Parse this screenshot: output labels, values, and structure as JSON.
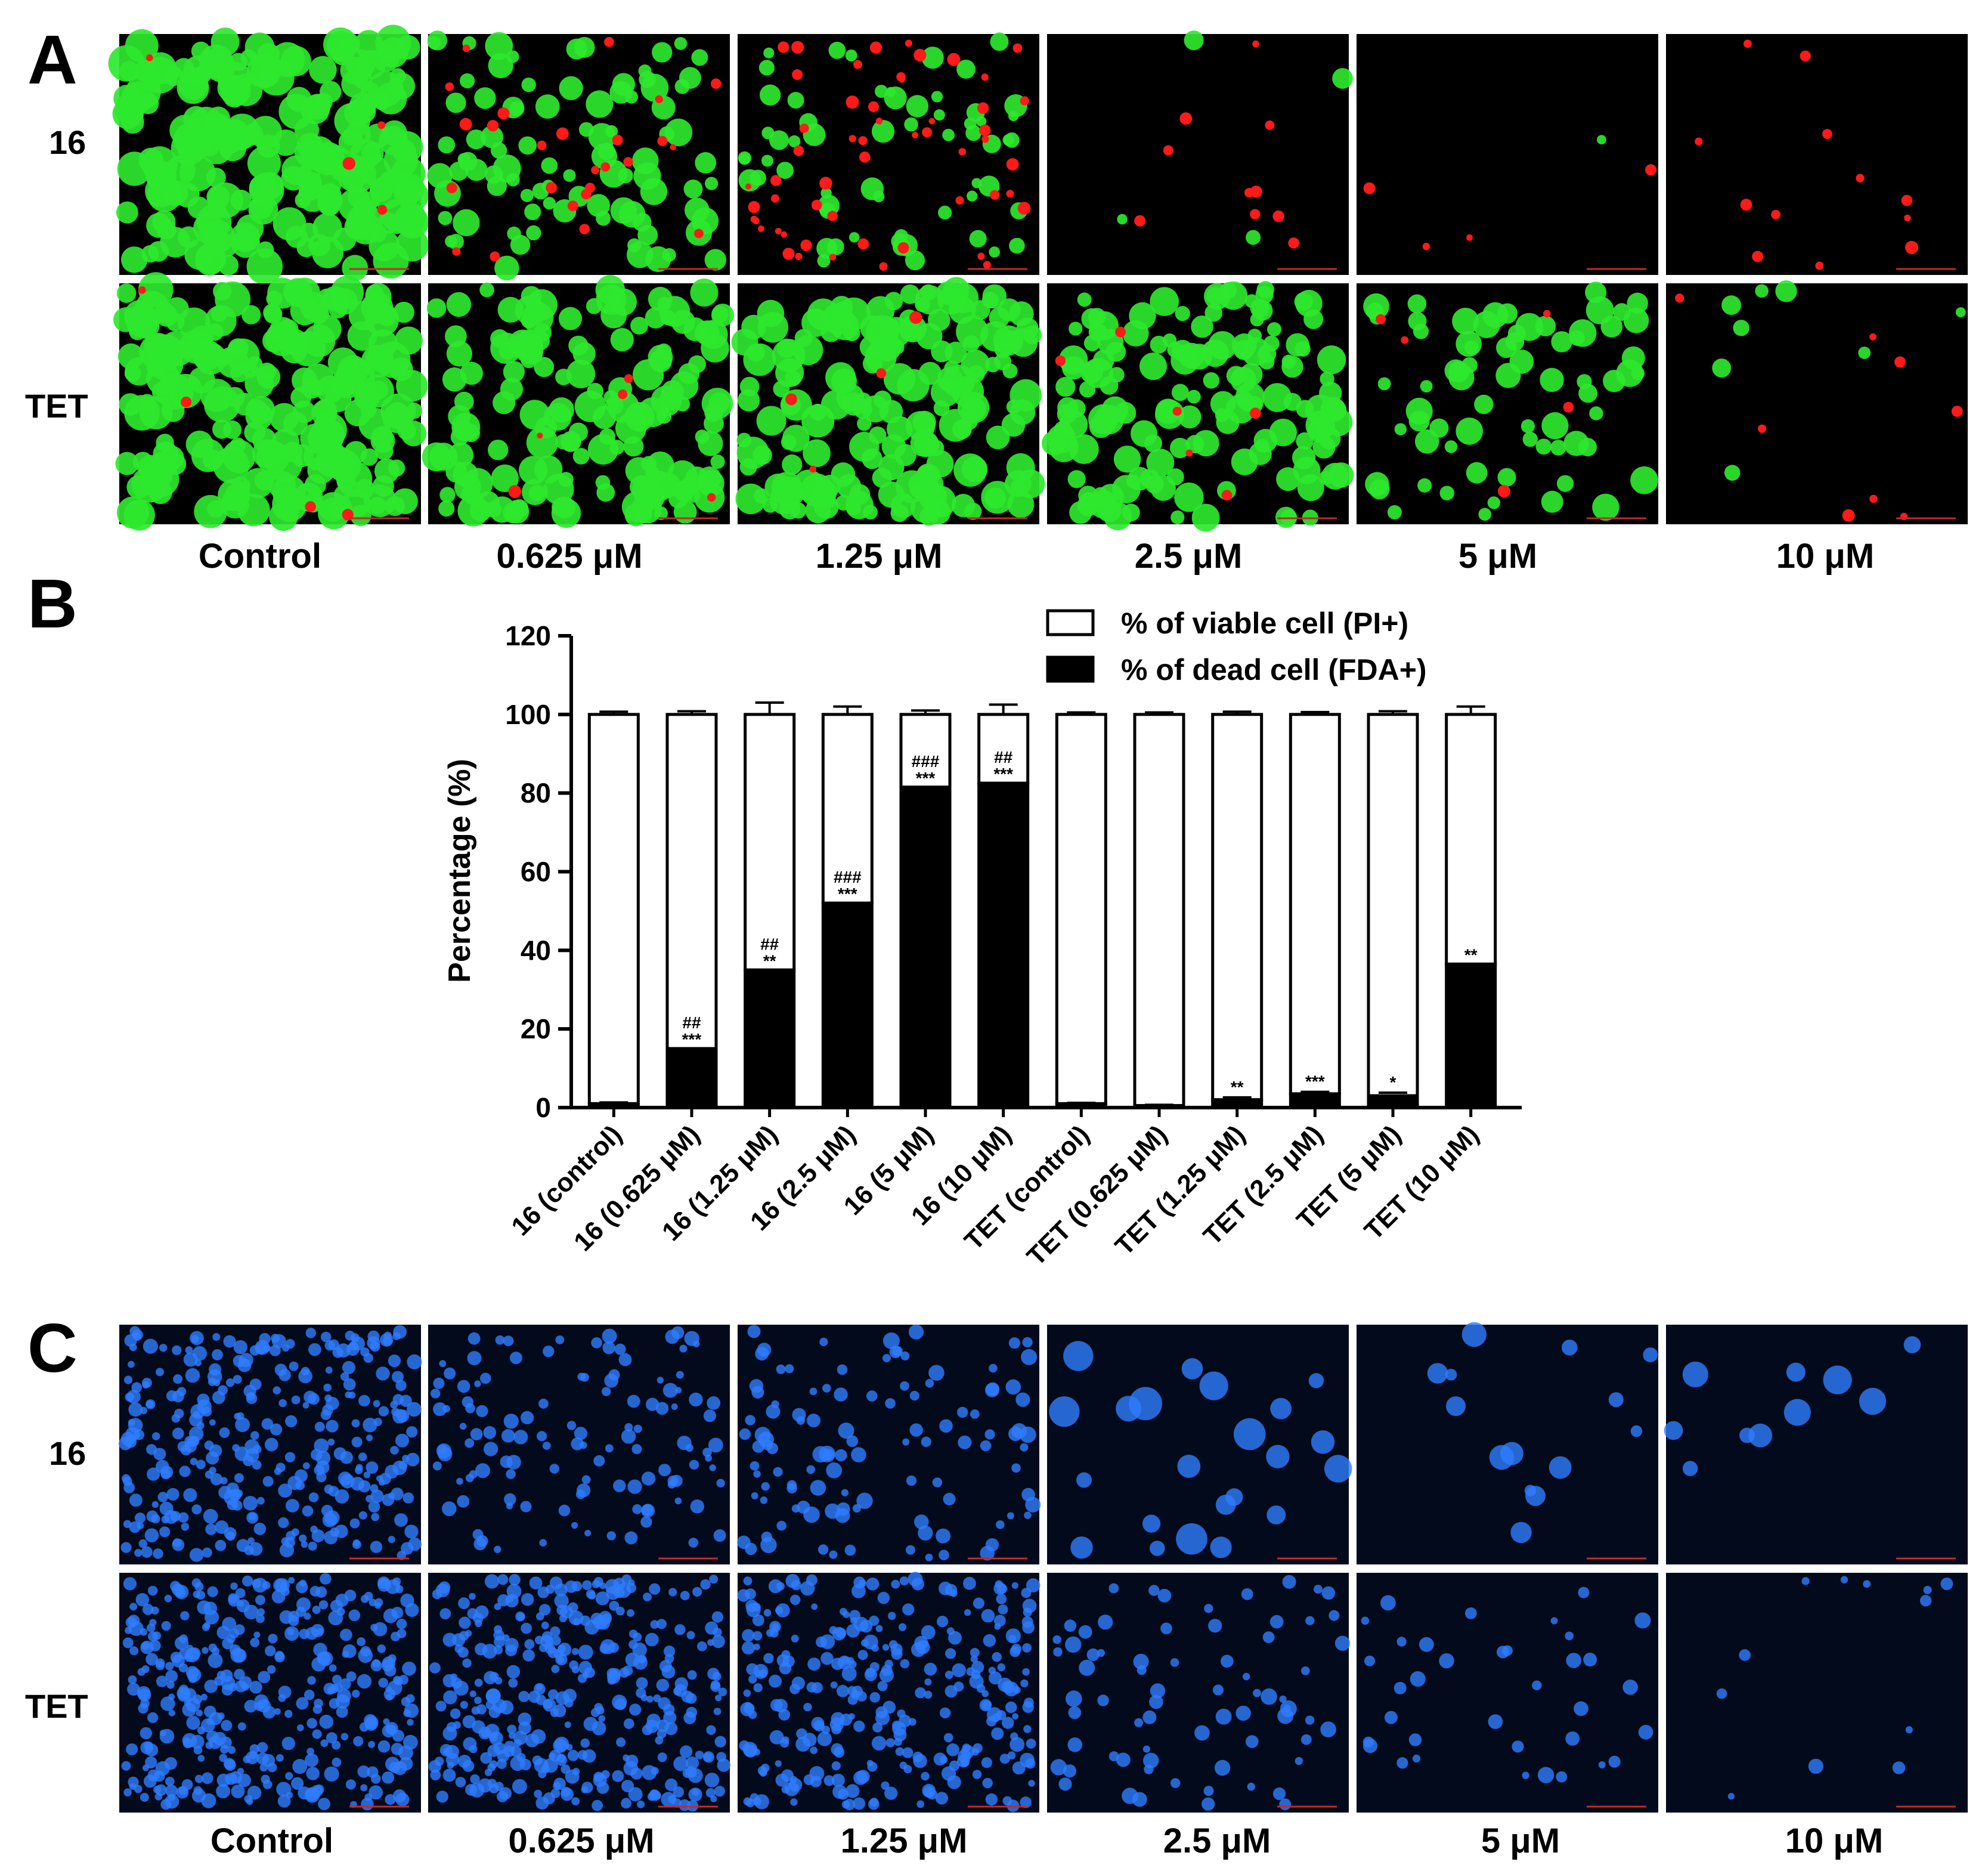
{
  "panels": {
    "a": {
      "letter": "A",
      "rows": [
        "16",
        "TET"
      ],
      "columns": [
        "Control",
        "0.625 μM",
        "1.25 μM",
        "2.5 μM",
        "5 μM",
        "10  μM"
      ]
    },
    "b": {
      "letter": "B"
    },
    "c": {
      "letter": "C",
      "rows": [
        "16",
        "TET"
      ],
      "columns": [
        "Control",
        "0.625 μM",
        "1.25 μM",
        "2.5 μM",
        "5 μM",
        "10  μM"
      ]
    }
  },
  "colors": {
    "live_green": "#2ee82e",
    "dead_red": "#ff1a1a",
    "blue_stain": "#2f7dff",
    "bar_dead": "#000000",
    "bar_viable": "#ffffff"
  },
  "chart_data": {
    "type": "bar",
    "stacked": true,
    "categories": [
      "16 (control)",
      "16 (0.625 μM)",
      "16 (1.25 μM)",
      "16 (2.5 μM)",
      "16 (5 μM)",
      "16 (10 μM)",
      "TET (control)",
      "TET (0.625 μM)",
      "TET (1.25 μM)",
      "TET (2.5 μM)",
      "TET (5 μM)",
      "TET (10 μM)"
    ],
    "series": [
      {
        "name": "% of dead cell (FDA+)",
        "color": "#000000",
        "values": [
          1,
          15,
          35,
          52,
          81.5,
          82.5,
          1,
          0.5,
          2,
          3.5,
          3,
          36.5
        ],
        "error": [
          0.3,
          1.2,
          3,
          1.5,
          1,
          2.5,
          0.2,
          0.2,
          0.6,
          0.5,
          0.8,
          1.5
        ]
      },
      {
        "name": "% of viable cell (PI+)",
        "color": "#ffffff",
        "values": [
          99,
          85,
          65,
          48,
          18.5,
          17.5,
          99,
          99.5,
          98,
          96.5,
          97,
          63.5
        ],
        "error": [
          0.7,
          0.8,
          3,
          2,
          1,
          2.5,
          0.5,
          0.5,
          0.7,
          0.6,
          0.8,
          2
        ]
      }
    ],
    "significance": [
      {
        "stars": "",
        "hashes": ""
      },
      {
        "stars": "***",
        "hashes": "##"
      },
      {
        "stars": "**",
        "hashes": "##"
      },
      {
        "stars": "***",
        "hashes": "###"
      },
      {
        "stars": "***",
        "hashes": "###"
      },
      {
        "stars": "***",
        "hashes": "##"
      },
      {
        "stars": "",
        "hashes": ""
      },
      {
        "stars": "",
        "hashes": ""
      },
      {
        "stars": "**",
        "hashes": ""
      },
      {
        "stars": "***",
        "hashes": ""
      },
      {
        "stars": "*",
        "hashes": ""
      },
      {
        "stars": "**",
        "hashes": ""
      }
    ],
    "ylabel": "Percentage (%)",
    "xlabel": "",
    "ylim": [
      0,
      120
    ],
    "yticks": [
      0,
      20,
      40,
      60,
      80,
      100,
      120
    ],
    "legend_position": "top-right",
    "grid": false
  }
}
